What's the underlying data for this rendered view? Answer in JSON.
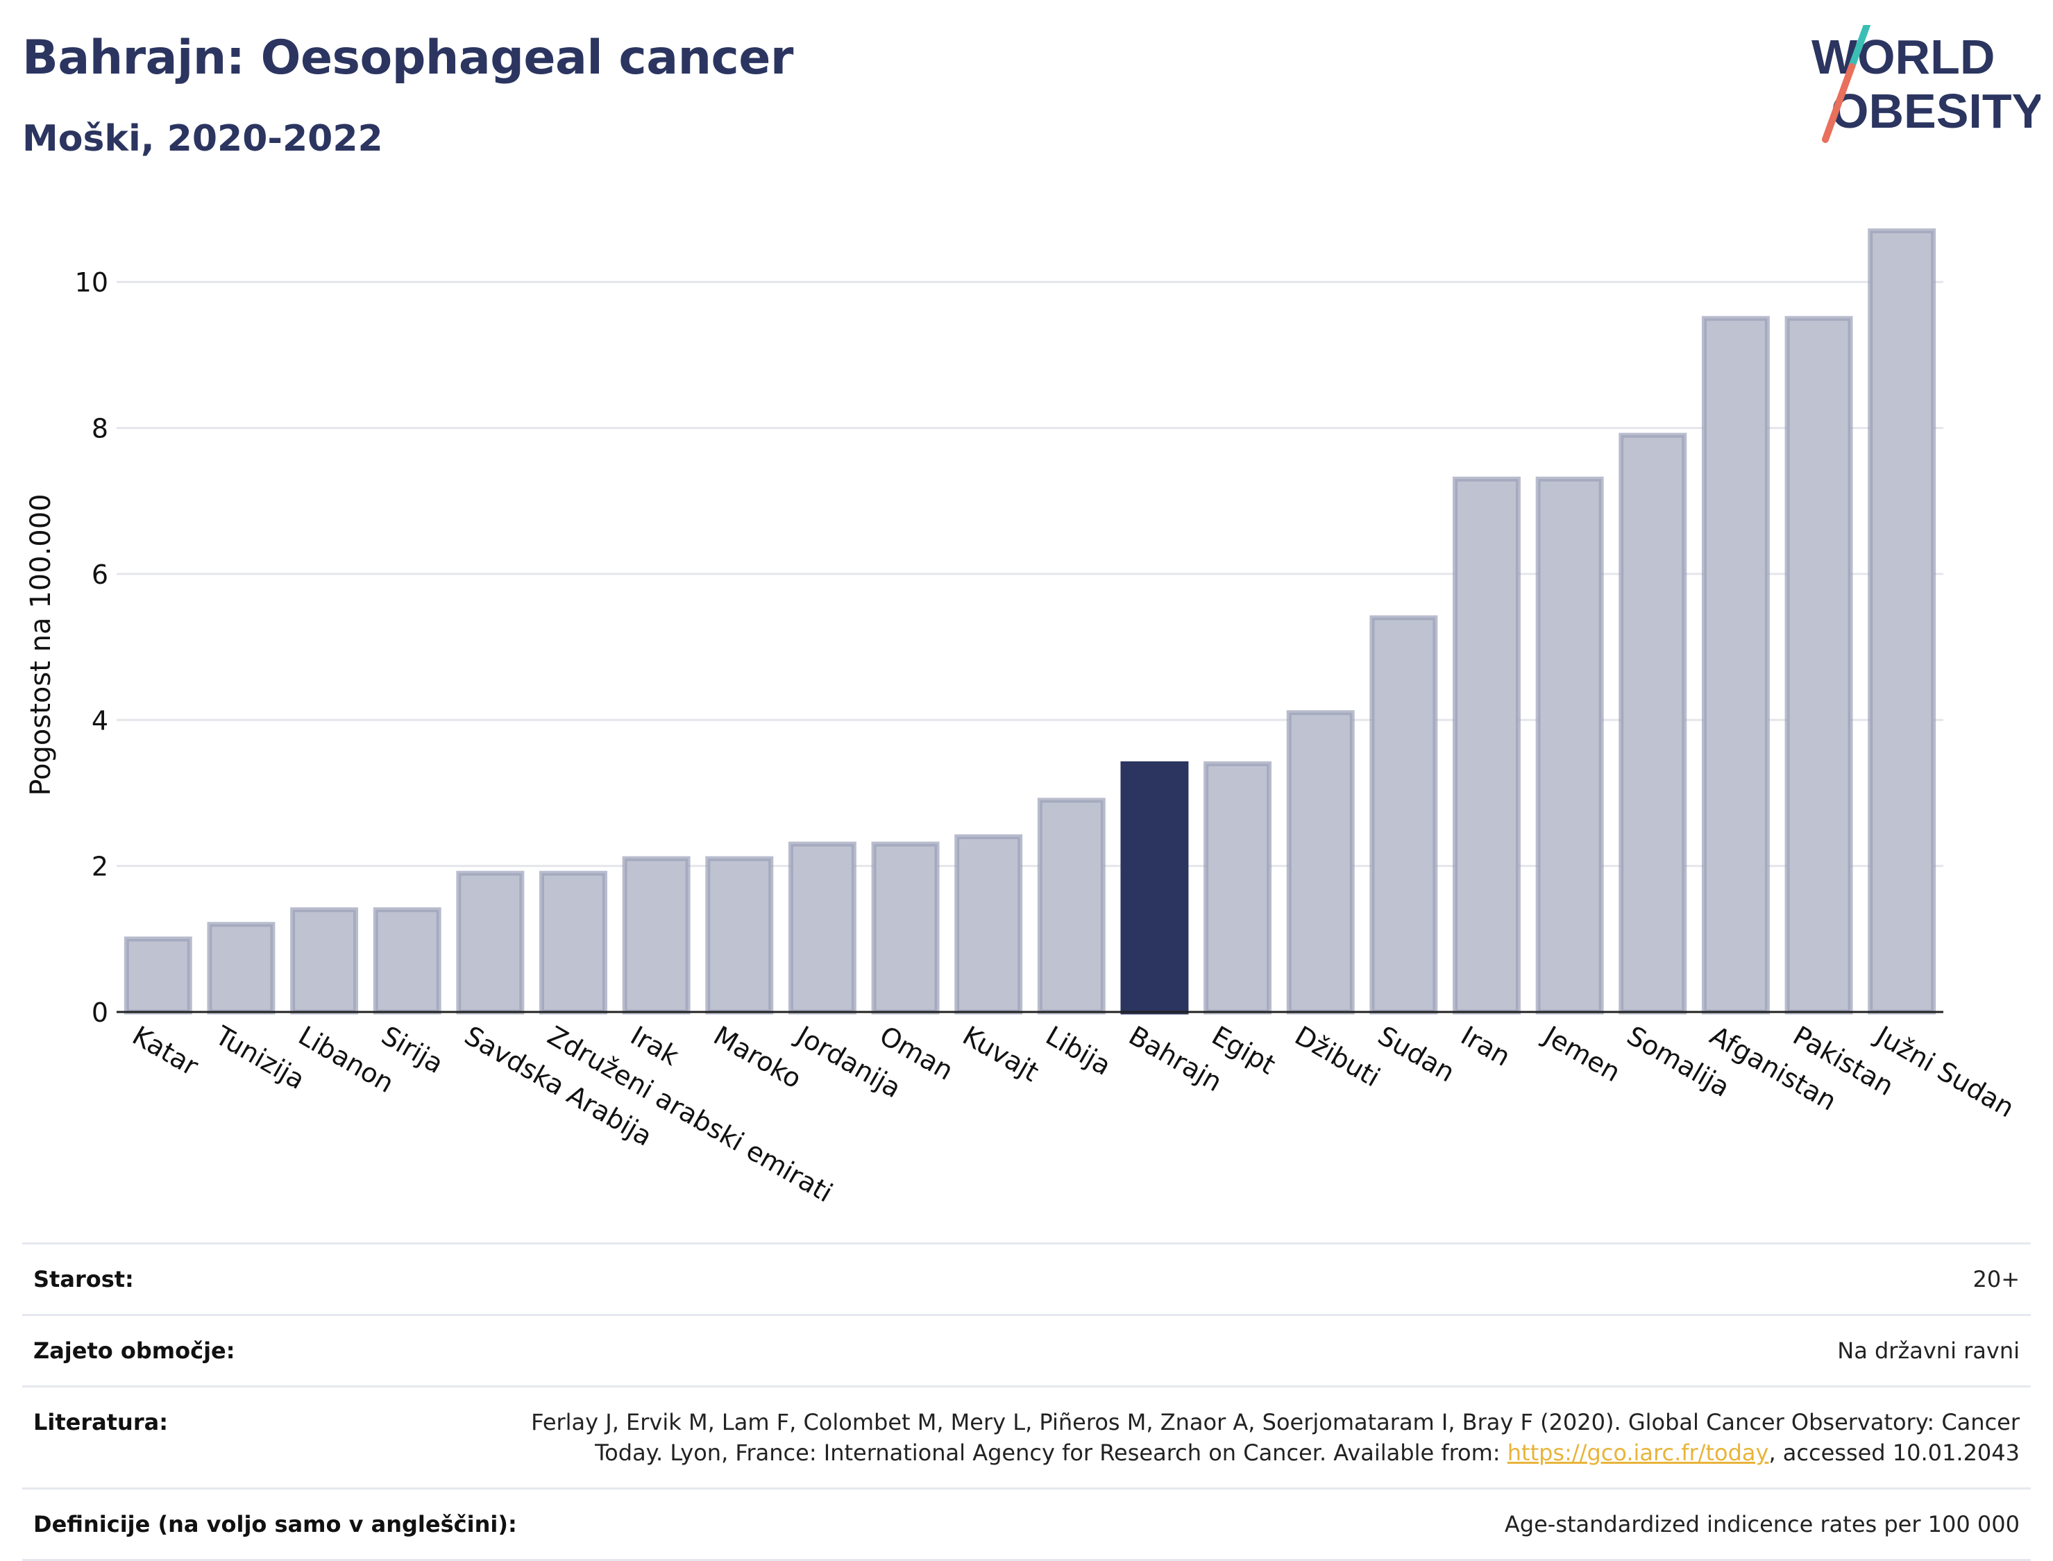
{
  "header": {
    "title": "Bahrajn: Oesophageal cancer",
    "subtitle": "Moški, 2020-2022"
  },
  "logo": {
    "line1": "WORLD",
    "line2": "OBESITY"
  },
  "colors": {
    "title": "#2b3560",
    "bar": "#bfc3d1",
    "bar_border": "#9aa0b8",
    "highlight": "#2b3560",
    "grid": "#e4e6ec",
    "link": "#e8b43a",
    "logo_teal": "#3bbfb4",
    "logo_coral": "#e8705c"
  },
  "chart_data": {
    "type": "bar",
    "title": "Bahrajn: Oesophageal cancer",
    "subtitle": "Moški, 2020-2022",
    "xlabel": "",
    "ylabel": "Pogostost na 100.000",
    "ylim": [
      0,
      11.2
    ],
    "yticks": [
      0,
      2,
      4,
      6,
      8,
      10
    ],
    "grid": true,
    "highlight": "Bahrajn",
    "categories": [
      "Katar",
      "Tunizija",
      "Libanon",
      "Sirija",
      "Savdska Arabija",
      "Združeni arabski emirati",
      "Irak",
      "Maroko",
      "Jordanija",
      "Oman",
      "Kuvajt",
      "Libija",
      "Bahrajn",
      "Egipt",
      "Džibuti",
      "Sudan",
      "Iran",
      "Jemen",
      "Somalija",
      "Afganistan",
      "Pakistan",
      "Južni Sudan"
    ],
    "values": [
      1.0,
      1.2,
      1.4,
      1.4,
      1.9,
      1.9,
      2.1,
      2.1,
      2.3,
      2.3,
      2.4,
      2.9,
      3.4,
      3.4,
      4.1,
      5.4,
      7.3,
      7.3,
      7.9,
      9.5,
      9.5,
      10.7
    ]
  },
  "info": {
    "rows": [
      {
        "label": "Starost:",
        "value": "20+"
      },
      {
        "label": "Zajeto območje:",
        "value": "Na državni ravni"
      },
      {
        "label": "Literatura:",
        "value_before": "Ferlay J, Ervik M, Lam F, Colombet M, Mery L, Piñeros M, Znaor A, Soerjomataram I, Bray F (2020). Global Cancer Observatory: Cancer Today. Lyon, France: International Agency for Research on Cancer. Available from: ",
        "link": "https://gco.iarc.fr/today",
        "value_after": ", accessed 10.01.2043"
      },
      {
        "label": "Definicije (na voljo samo v angleščini):",
        "value": "Age-standardized indicence rates per 100 000"
      }
    ]
  }
}
